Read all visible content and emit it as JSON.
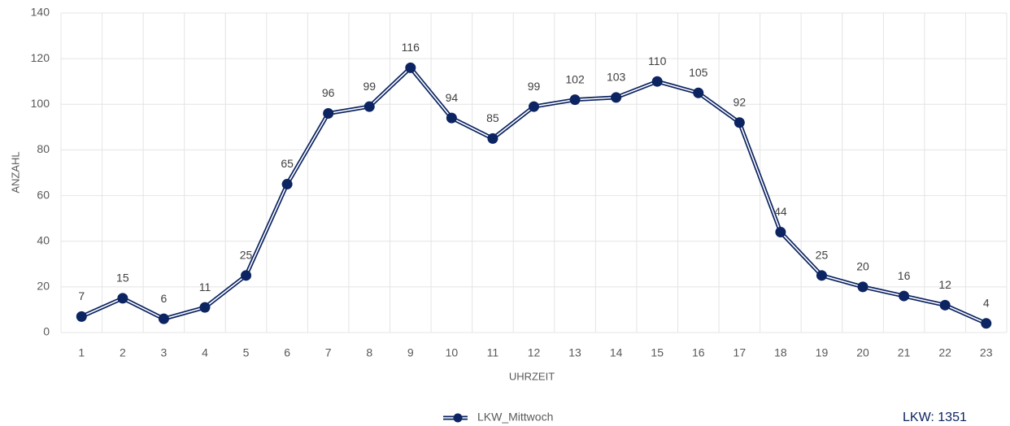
{
  "chart_data": {
    "type": "line",
    "categories": [
      "1",
      "2",
      "3",
      "4",
      "5",
      "6",
      "7",
      "8",
      "9",
      "10",
      "11",
      "12",
      "13",
      "14",
      "15",
      "16",
      "17",
      "18",
      "19",
      "20",
      "21",
      "22",
      "23"
    ],
    "series": [
      {
        "name": "LKW_Mittwoch",
        "color": "#0c2461",
        "values": [
          7,
          15,
          6,
          11,
          25,
          65,
          96,
          99,
          116,
          94,
          85,
          99,
          102,
          103,
          110,
          105,
          92,
          44,
          25,
          20,
          16,
          12,
          4
        ]
      }
    ],
    "ylim": [
      0,
      140
    ],
    "yticks": [
      0,
      20,
      40,
      60,
      80,
      100,
      120,
      140
    ],
    "x_label": "UHRZEIT",
    "y_label": "ANZAHL",
    "annotation": "LKW: 1351",
    "grid": true,
    "legend": "bottom"
  }
}
